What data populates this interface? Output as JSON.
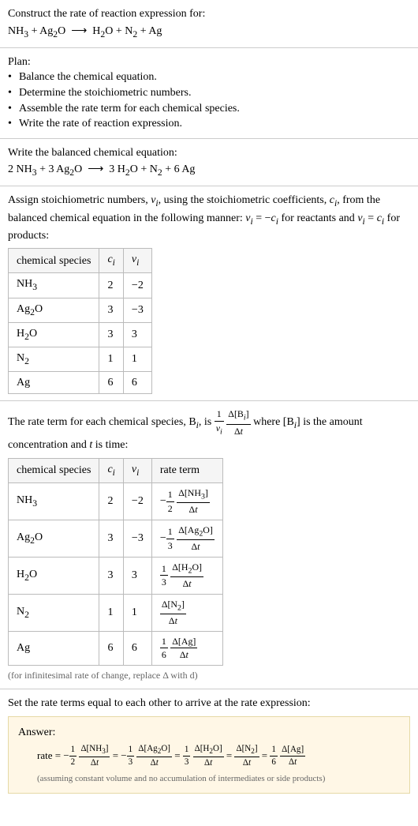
{
  "intro": {
    "title": "Construct the rate of reaction expression for:",
    "equation_html": "NH<sub>3</sub> + Ag<sub>2</sub>O &nbsp;⟶&nbsp; H<sub>2</sub>O + N<sub>2</sub> + Ag"
  },
  "plan": {
    "title": "Plan:",
    "items": [
      "Balance the chemical equation.",
      "Determine the stoichiometric numbers.",
      "Assemble the rate term for each chemical species.",
      "Write the rate of reaction expression."
    ]
  },
  "balanced": {
    "title": "Write the balanced chemical equation:",
    "equation_html": "2 NH<sub>3</sub> + 3 Ag<sub>2</sub>O &nbsp;⟶&nbsp; 3 H<sub>2</sub>O + N<sub>2</sub> + 6 Ag"
  },
  "stoich": {
    "intro_html": "Assign stoichiometric numbers, <i>ν<sub>i</sub></i>, using the stoichiometric coefficients, <i>c<sub>i</sub></i>, from the balanced chemical equation in the following manner: <i>ν<sub>i</sub></i> = −<i>c<sub>i</sub></i> for reactants and <i>ν<sub>i</sub></i> = <i>c<sub>i</sub></i> for products:",
    "headers": [
      "chemical species",
      "cᵢ",
      "νᵢ"
    ],
    "headers_html": [
      "chemical species",
      "<i>c<sub>i</sub></i>",
      "<i>ν<sub>i</sub></i>"
    ],
    "rows": [
      {
        "species_html": "NH<sub>3</sub>",
        "c": "2",
        "nu": "−2"
      },
      {
        "species_html": "Ag<sub>2</sub>O",
        "c": "3",
        "nu": "−3"
      },
      {
        "species_html": "H<sub>2</sub>O",
        "c": "3",
        "nu": "3"
      },
      {
        "species_html": "N<sub>2</sub>",
        "c": "1",
        "nu": "1"
      },
      {
        "species_html": "Ag",
        "c": "6",
        "nu": "6"
      }
    ]
  },
  "rateterm": {
    "intro_html": "The rate term for each chemical species, B<sub><i>i</i></sub>, is <span class='frac'><span class='num'>1</span><span class='den'><i>ν<sub>i</sub></i></span></span> <span class='frac'><span class='num'>Δ[B<sub><i>i</i></sub>]</span><span class='den'>Δ<i>t</i></span></span> where [B<sub><i>i</i></sub>] is the amount concentration and <i>t</i> is time:",
    "headers_html": [
      "chemical species",
      "<i>c<sub>i</sub></i>",
      "<i>ν<sub>i</sub></i>",
      "rate term"
    ],
    "rows": [
      {
        "species_html": "NH<sub>3</sub>",
        "c": "2",
        "nu": "−2",
        "term_html": "−<span class='frac'><span class='num'>1</span><span class='den'>2</span></span> <span class='frac'><span class='num'>Δ[NH<sub>3</sub>]</span><span class='den'>Δ<i>t</i></span></span>"
      },
      {
        "species_html": "Ag<sub>2</sub>O",
        "c": "3",
        "nu": "−3",
        "term_html": "−<span class='frac'><span class='num'>1</span><span class='den'>3</span></span> <span class='frac'><span class='num'>Δ[Ag<sub>2</sub>O]</span><span class='den'>Δ<i>t</i></span></span>"
      },
      {
        "species_html": "H<sub>2</sub>O",
        "c": "3",
        "nu": "3",
        "term_html": "<span class='frac'><span class='num'>1</span><span class='den'>3</span></span> <span class='frac'><span class='num'>Δ[H<sub>2</sub>O]</span><span class='den'>Δ<i>t</i></span></span>"
      },
      {
        "species_html": "N<sub>2</sub>",
        "c": "1",
        "nu": "1",
        "term_html": "<span class='frac'><span class='num'>Δ[N<sub>2</sub>]</span><span class='den'>Δ<i>t</i></span></span>"
      },
      {
        "species_html": "Ag",
        "c": "6",
        "nu": "6",
        "term_html": "<span class='frac'><span class='num'>1</span><span class='den'>6</span></span> <span class='frac'><span class='num'>Δ[Ag]</span><span class='den'>Δ<i>t</i></span></span>"
      }
    ],
    "note": "(for infinitesimal rate of change, replace Δ with d)"
  },
  "final": {
    "title": "Set the rate terms equal to each other to arrive at the rate expression:",
    "answer_label": "Answer:",
    "expr_html": "rate = −<span class='frac'><span class='num'>1</span><span class='den'>2</span></span> <span class='frac'><span class='num'>Δ[NH<sub>3</sub>]</span><span class='den'>Δ<i>t</i></span></span> = −<span class='frac'><span class='num'>1</span><span class='den'>3</span></span> <span class='frac'><span class='num'>Δ[Ag<sub>2</sub>O]</span><span class='den'>Δ<i>t</i></span></span> = <span class='frac'><span class='num'>1</span><span class='den'>3</span></span> <span class='frac'><span class='num'>Δ[H<sub>2</sub>O]</span><span class='den'>Δ<i>t</i></span></span> = <span class='frac'><span class='num'>Δ[N<sub>2</sub>]</span><span class='den'>Δ<i>t</i></span></span> = <span class='frac'><span class='num'>1</span><span class='den'>6</span></span> <span class='frac'><span class='num'>Δ[Ag]</span><span class='den'>Δ<i>t</i></span></span>",
    "note": "(assuming constant volume and no accumulation of intermediates or side products)"
  },
  "colors": {
    "border": "#cccccc",
    "table_border": "#bbbbbb",
    "answer_bg": "#fff7e6",
    "answer_border": "#e6d9a6",
    "note_color": "#666666"
  }
}
